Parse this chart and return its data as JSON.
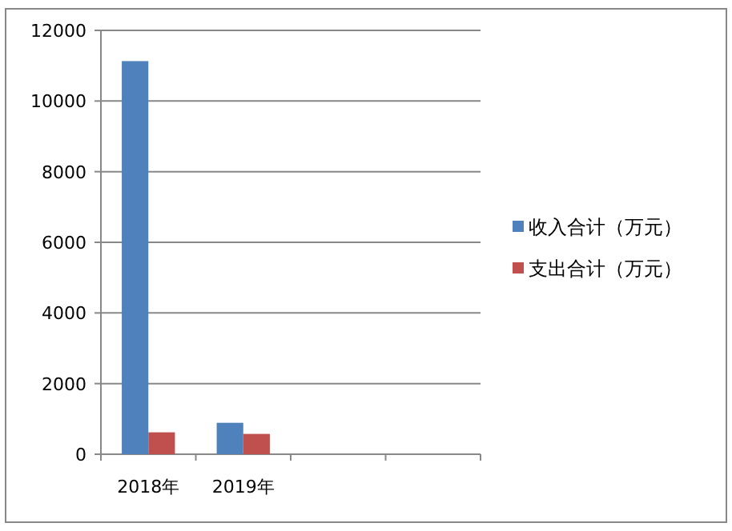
{
  "chart_data": {
    "type": "bar",
    "categories": [
      "2018年",
      "2019年",
      null,
      null
    ],
    "series": [
      {
        "name": "收入合计（万元）",
        "color": "#4f81bd",
        "values": [
          11130,
          890,
          null,
          null
        ]
      },
      {
        "name": "支出合计（万元）",
        "color": "#c0504d",
        "values": [
          620,
          575,
          null,
          null
        ]
      }
    ],
    "ylim": [
      0,
      12000
    ],
    "yticks": [
      0,
      2000,
      4000,
      6000,
      8000,
      10000,
      12000
    ],
    "grid": "y",
    "legend": "right"
  }
}
